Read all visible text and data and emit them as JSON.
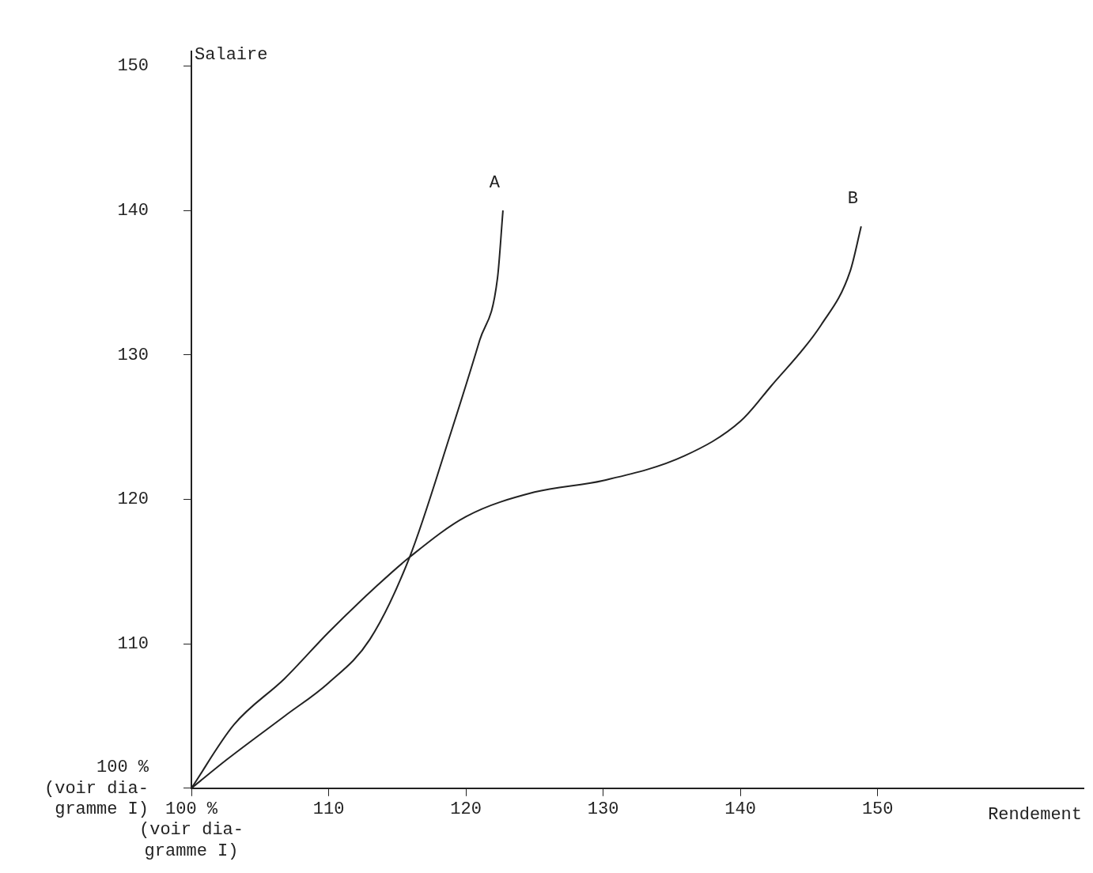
{
  "chart_data": {
    "type": "line",
    "xlabel": "Rendement",
    "ylabel": "Salaire",
    "xlim": [
      100,
      165
    ],
    "ylim": [
      100,
      151
    ],
    "xticks": [
      {
        "value": 100,
        "label": "100 %\n(voir dia-\ngramme I)"
      },
      110,
      120,
      130,
      140,
      150
    ],
    "yticks": [
      {
        "value": 100,
        "label": "100 %\n(voir dia-\ngramme I)"
      },
      110,
      120,
      130,
      140,
      150
    ],
    "grid": false,
    "legend": false,
    "marker": "none",
    "line_style": "solid",
    "series": [
      {
        "name": "A",
        "color": "#222222",
        "x": [
          100,
          102.6,
          106.8,
          110,
          113,
          115.9,
          118.9,
          121,
          122.3,
          122.7
        ],
        "values": [
          100,
          102,
          105,
          107.3,
          110.3,
          116,
          124.6,
          131,
          135.3,
          140
        ]
      },
      {
        "name": "B",
        "color": "#222222",
        "x": [
          100,
          103.1,
          106.8,
          110,
          113.5,
          115.9,
          120,
          125,
          130,
          135.9,
          140,
          142.2,
          145.9,
          148,
          148.8
        ],
        "values": [
          100,
          104.4,
          107.6,
          110.8,
          114,
          116,
          118.8,
          120.5,
          121.3,
          123,
          125.4,
          127.8,
          132.1,
          135.8,
          138.9
        ]
      }
    ]
  }
}
